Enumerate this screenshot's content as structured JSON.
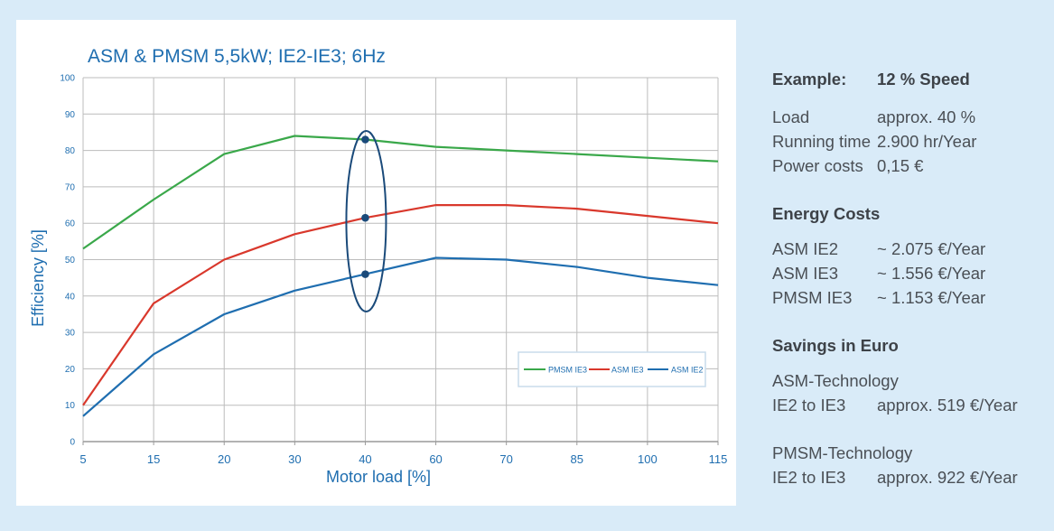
{
  "chart_data": {
    "type": "line",
    "title": "ASM & PMSM 5,5kW; IE2-IE3; 6Hz",
    "xlabel": "Motor load [%]",
    "ylabel": "Efficiency [%]",
    "categories": [
      "5",
      "15",
      "20",
      "30",
      "40",
      "60",
      "70",
      "85",
      "100",
      "115"
    ],
    "yticks": [
      "0",
      "10",
      "20",
      "30",
      "40",
      "50",
      "60",
      "70",
      "80",
      "90",
      "100"
    ],
    "ylim": [
      0,
      100
    ],
    "grid": true,
    "legend_position": "bottom-right",
    "series": [
      {
        "name": "PMSM IE3",
        "color": "#3aa84a",
        "values": [
          53,
          66.5,
          79,
          84,
          83,
          81,
          80,
          79,
          78,
          77
        ]
      },
      {
        "name": "ASM IE3",
        "color": "#d9382c",
        "values": [
          10,
          38,
          50,
          57,
          61.5,
          65,
          65,
          64,
          62,
          60
        ]
      },
      {
        "name": "ASM IE2",
        "color": "#1f6eb0",
        "values": [
          7,
          24,
          35,
          41.5,
          46,
          50.5,
          50,
          48,
          45,
          43
        ]
      }
    ],
    "highlight": {
      "category": "40",
      "points": [
        83,
        61.5,
        46
      ],
      "color": "#1a4a7a"
    }
  },
  "info": {
    "example_label": "Example:",
    "example_value": "12 % Speed",
    "rows": [
      {
        "label": "Load",
        "value": "approx. 40 %"
      },
      {
        "label": "Running time",
        "value": "2.900 hr/Year"
      },
      {
        "label": "Power costs",
        "value": "0,15 €"
      }
    ],
    "energy_costs_title": "Energy Costs",
    "costs": [
      {
        "label": "ASM IE2",
        "value": "~ 2.075 €/Year"
      },
      {
        "label": "ASM IE3",
        "value": "~ 1.556 €/Year"
      },
      {
        "label": "PMSM IE3",
        "value": "~ 1.153 €/Year"
      }
    ],
    "savings_title": "Savings in Euro",
    "asm_tech": "ASM-Technology",
    "asm_row": {
      "label": "IE2 to IE3",
      "value": "approx. 519 €/Year"
    },
    "pmsm_tech": "PMSM-Technology",
    "pmsm_row": {
      "label": "IE2 to IE3",
      "value": "approx. 922 €/Year"
    }
  }
}
